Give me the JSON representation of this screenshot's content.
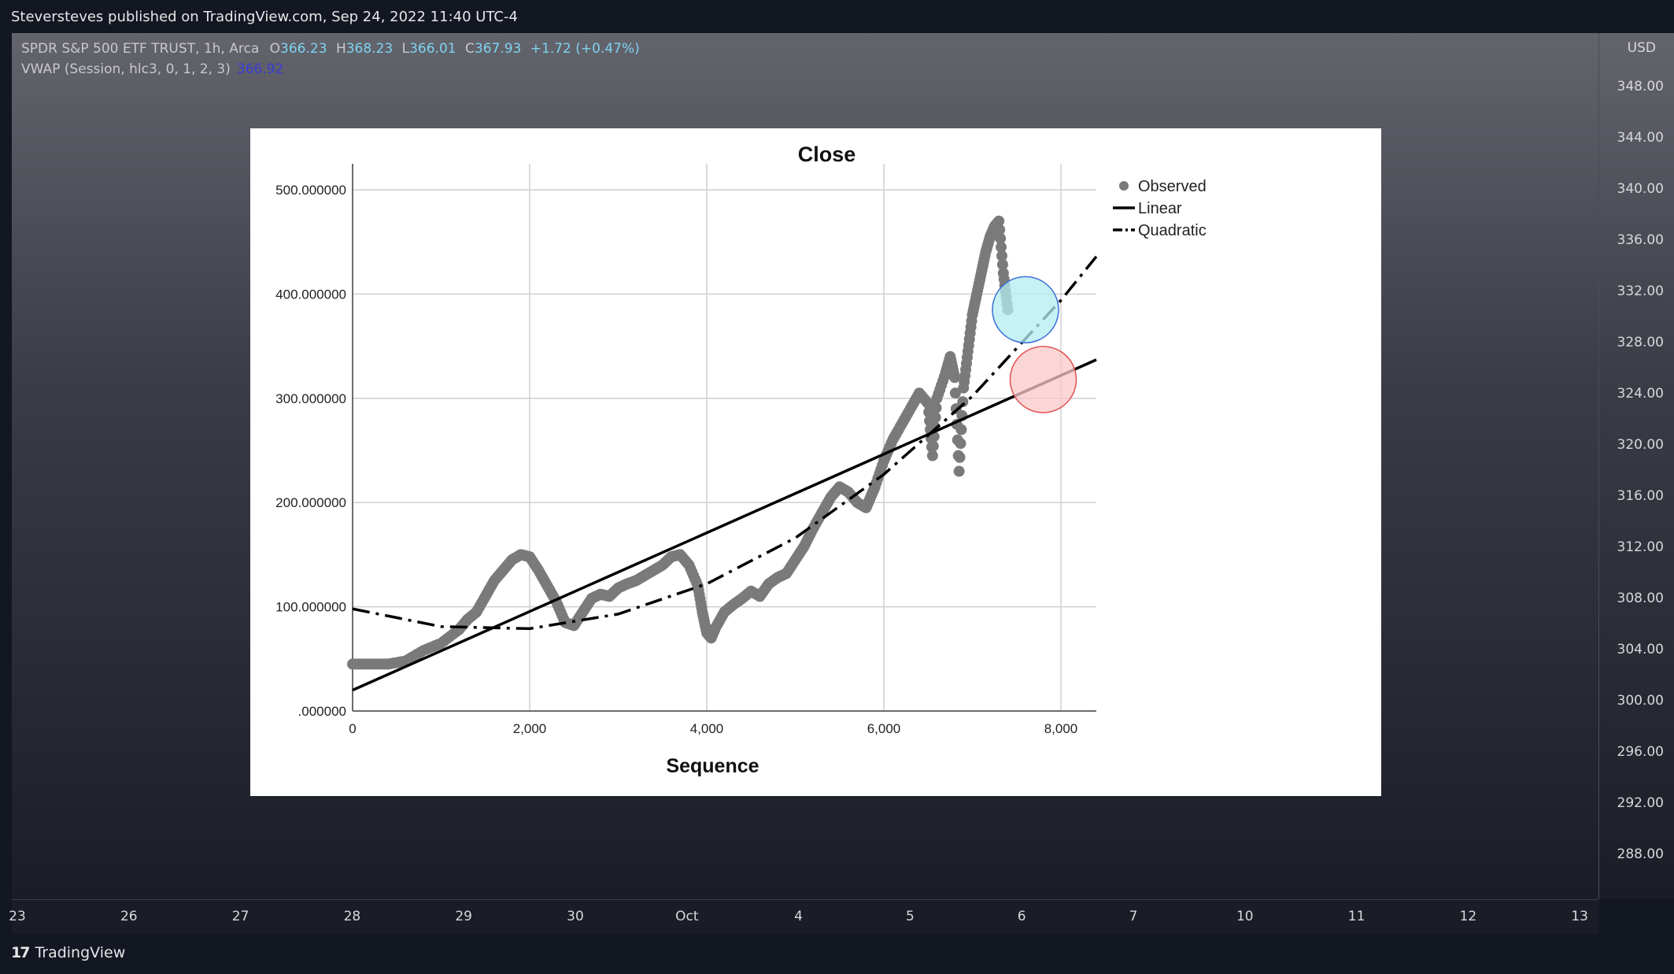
{
  "header": {
    "published_text": "Steversteves published on TradingView.com, Sep 24, 2022 11:40 UTC-4"
  },
  "legend": {
    "symbol": "SPDR S&P 500 ETF TRUST, 1h, Arca",
    "open_label": "O",
    "open": "366.23",
    "high_label": "H",
    "high": "368.23",
    "low_label": "L",
    "low": "366.01",
    "close_label": "C",
    "close": "367.93",
    "change": "+1.72 (+0.47%)",
    "vwap_label": "VWAP (Session, hlc3, 0, 1, 2, 3)",
    "vwap_value": "366.92"
  },
  "price_axis": {
    "currency": "USD",
    "labels": [
      "348.00",
      "344.00",
      "340.00",
      "336.00",
      "332.00",
      "328.00",
      "324.00",
      "320.00",
      "316.00",
      "312.00",
      "308.00",
      "304.00",
      "300.00",
      "296.00",
      "292.00",
      "288.00"
    ]
  },
  "time_axis": {
    "labels": [
      "23",
      "26",
      "27",
      "28",
      "29",
      "30",
      "Oct",
      "4",
      "5",
      "6",
      "7",
      "10",
      "11",
      "12",
      "13"
    ]
  },
  "footer": {
    "brand": "TradingView"
  },
  "chart_data": {
    "type": "scatter",
    "title": "Close",
    "xlabel": "Sequence",
    "ylabel": "",
    "xlim": [
      0,
      8400
    ],
    "ylim": [
      0,
      525
    ],
    "x_ticks": [
      0,
      2000,
      4000,
      6000,
      8000
    ],
    "x_tick_labels": [
      "0",
      "2,000",
      "4,000",
      "6,000",
      "8,000"
    ],
    "y_ticks": [
      0,
      100,
      200,
      300,
      400,
      500
    ],
    "y_tick_labels": [
      ".000000",
      "100.000000",
      "200.000000",
      "300.000000",
      "400.000000",
      "500.000000"
    ],
    "grid": true,
    "legend_position": "top-right",
    "series": [
      {
        "name": "Observed",
        "style": "points",
        "color": "#7a7a7a",
        "x": [
          0,
          200,
          400,
          600,
          800,
          1000,
          1200,
          1300,
          1400,
          1500,
          1600,
          1700,
          1800,
          1900,
          2000,
          2100,
          2200,
          2300,
          2400,
          2500,
          2600,
          2700,
          2800,
          2900,
          3000,
          3100,
          3200,
          3300,
          3400,
          3500,
          3600,
          3700,
          3800,
          3900,
          3950,
          4000,
          4050,
          4100,
          4200,
          4300,
          4400,
          4500,
          4600,
          4700,
          4800,
          4900,
          5000,
          5100,
          5200,
          5300,
          5400,
          5500,
          5600,
          5700,
          5800,
          5850,
          5900,
          6000,
          6100,
          6200,
          6300,
          6400,
          6500,
          6550,
          6600,
          6700,
          6750,
          6800,
          6850,
          6900,
          6950,
          7000,
          7050,
          7100,
          7150,
          7200,
          7250,
          7300,
          7350,
          7400
        ],
        "y": [
          45,
          45,
          45,
          48,
          58,
          65,
          78,
          88,
          95,
          110,
          125,
          135,
          145,
          150,
          148,
          135,
          120,
          105,
          85,
          82,
          95,
          108,
          112,
          110,
          118,
          122,
          125,
          130,
          135,
          140,
          148,
          150,
          140,
          120,
          95,
          75,
          70,
          80,
          95,
          102,
          108,
          115,
          110,
          122,
          128,
          132,
          145,
          158,
          175,
          190,
          205,
          215,
          210,
          200,
          195,
          205,
          215,
          240,
          260,
          275,
          290,
          305,
          295,
          245,
          300,
          325,
          340,
          320,
          230,
          310,
          345,
          380,
          400,
          420,
          440,
          455,
          465,
          470,
          420,
          385
        ]
      },
      {
        "name": "Linear",
        "style": "solid",
        "color": "#000000",
        "x": [
          0,
          8400
        ],
        "y": [
          20,
          337
        ]
      },
      {
        "name": "Quadratic",
        "style": "dashdot",
        "color": "#000000",
        "x": [
          0,
          1000,
          2000,
          3000,
          4000,
          5000,
          6000,
          7000,
          8000,
          8400
        ],
        "y": [
          98,
          81,
          79,
          93,
          122,
          166,
          227,
          302,
          394,
          436
        ]
      }
    ],
    "annotations": [
      {
        "shape": "circle",
        "x": 7600,
        "y": 385,
        "fill": "#b3ecf2",
        "stroke": "#3b6fd6"
      },
      {
        "shape": "circle",
        "x": 7800,
        "y": 318,
        "fill": "#f9c8ca",
        "stroke": "#e05050"
      }
    ]
  }
}
